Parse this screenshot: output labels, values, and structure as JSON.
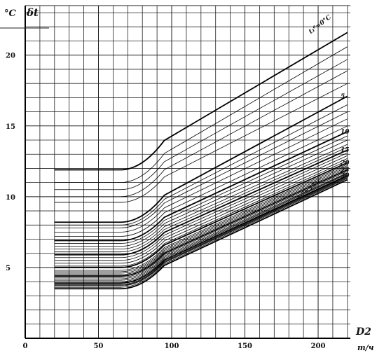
{
  "chart_data": {
    "type": "line",
    "title": "",
    "xlabel": "D2",
    "xunit": "m/ч",
    "ylabel": "δt",
    "yunit": "°C",
    "xlim": [
      0,
      222
    ],
    "ylim": [
      0,
      23.5
    ],
    "xticks": [
      "0",
      "50",
      "100",
      "150",
      "200"
    ],
    "yticks": [
      "5",
      "10",
      "15",
      "20"
    ],
    "grid": true,
    "legend": "none",
    "curve_labels": [
      {
        "text": "t₁⁰=0°C",
        "series": 0
      },
      {
        "text": "5",
        "series": 5
      },
      {
        "text": "10",
        "series": 10
      },
      {
        "text": "15",
        "series": 15
      },
      {
        "text": "20",
        "series": 20
      },
      {
        "text": "25",
        "series": 25
      },
      {
        "text": "30",
        "series": 30
      },
      {
        "text": "t₁⁰=35°C",
        "series": 35
      }
    ],
    "series": [
      {
        "start_y": 11.9,
        "end_y": 21.6
      },
      {
        "start_y": 11.0,
        "end_y": 20.6
      },
      {
        "start_y": 10.5,
        "end_y": 19.7
      },
      {
        "start_y": 10.0,
        "end_y": 18.9
      },
      {
        "start_y": 9.6,
        "end_y": 18.0
      },
      {
        "start_y": 8.2,
        "end_y": 17.1
      },
      {
        "start_y": 8.0,
        "end_y": 16.5
      },
      {
        "start_y": 7.8,
        "end_y": 16.0
      },
      {
        "start_y": 7.5,
        "end_y": 15.5
      },
      {
        "start_y": 7.2,
        "end_y": 15.0
      },
      {
        "start_y": 6.9,
        "end_y": 14.6
      },
      {
        "start_y": 6.7,
        "end_y": 14.3
      },
      {
        "start_y": 6.5,
        "end_y": 14.0
      },
      {
        "start_y": 6.3,
        "end_y": 13.7
      },
      {
        "start_y": 6.1,
        "end_y": 13.5
      },
      {
        "start_y": 5.9,
        "end_y": 13.3
      },
      {
        "start_y": 5.7,
        "end_y": 13.1
      },
      {
        "start_y": 5.5,
        "end_y": 12.9
      },
      {
        "start_y": 5.3,
        "end_y": 12.7
      },
      {
        "start_y": 5.1,
        "end_y": 12.55
      },
      {
        "start_y": 5.0,
        "end_y": 12.4
      },
      {
        "start_y": 4.8,
        "end_y": 12.3
      },
      {
        "start_y": 4.7,
        "end_y": 12.2
      },
      {
        "start_y": 4.6,
        "end_y": 12.1
      },
      {
        "start_y": 4.5,
        "end_y": 12.0
      },
      {
        "start_y": 4.4,
        "end_y": 11.9
      },
      {
        "start_y": 4.3,
        "end_y": 11.8
      },
      {
        "start_y": 4.2,
        "end_y": 11.7
      },
      {
        "start_y": 4.1,
        "end_y": 11.65
      },
      {
        "start_y": 4.0,
        "end_y": 11.6
      },
      {
        "start_y": 3.9,
        "end_y": 11.5
      },
      {
        "start_y": 3.8,
        "end_y": 11.45
      },
      {
        "start_y": 3.75,
        "end_y": 11.4
      },
      {
        "start_y": 3.7,
        "end_y": 11.35
      },
      {
        "start_y": 3.6,
        "end_y": 11.3
      },
      {
        "start_y": 3.5,
        "end_y": 11.2
      }
    ],
    "curve_shape": {
      "x_start": 20,
      "x_flat_end": 65,
      "x_end": 220
    }
  }
}
